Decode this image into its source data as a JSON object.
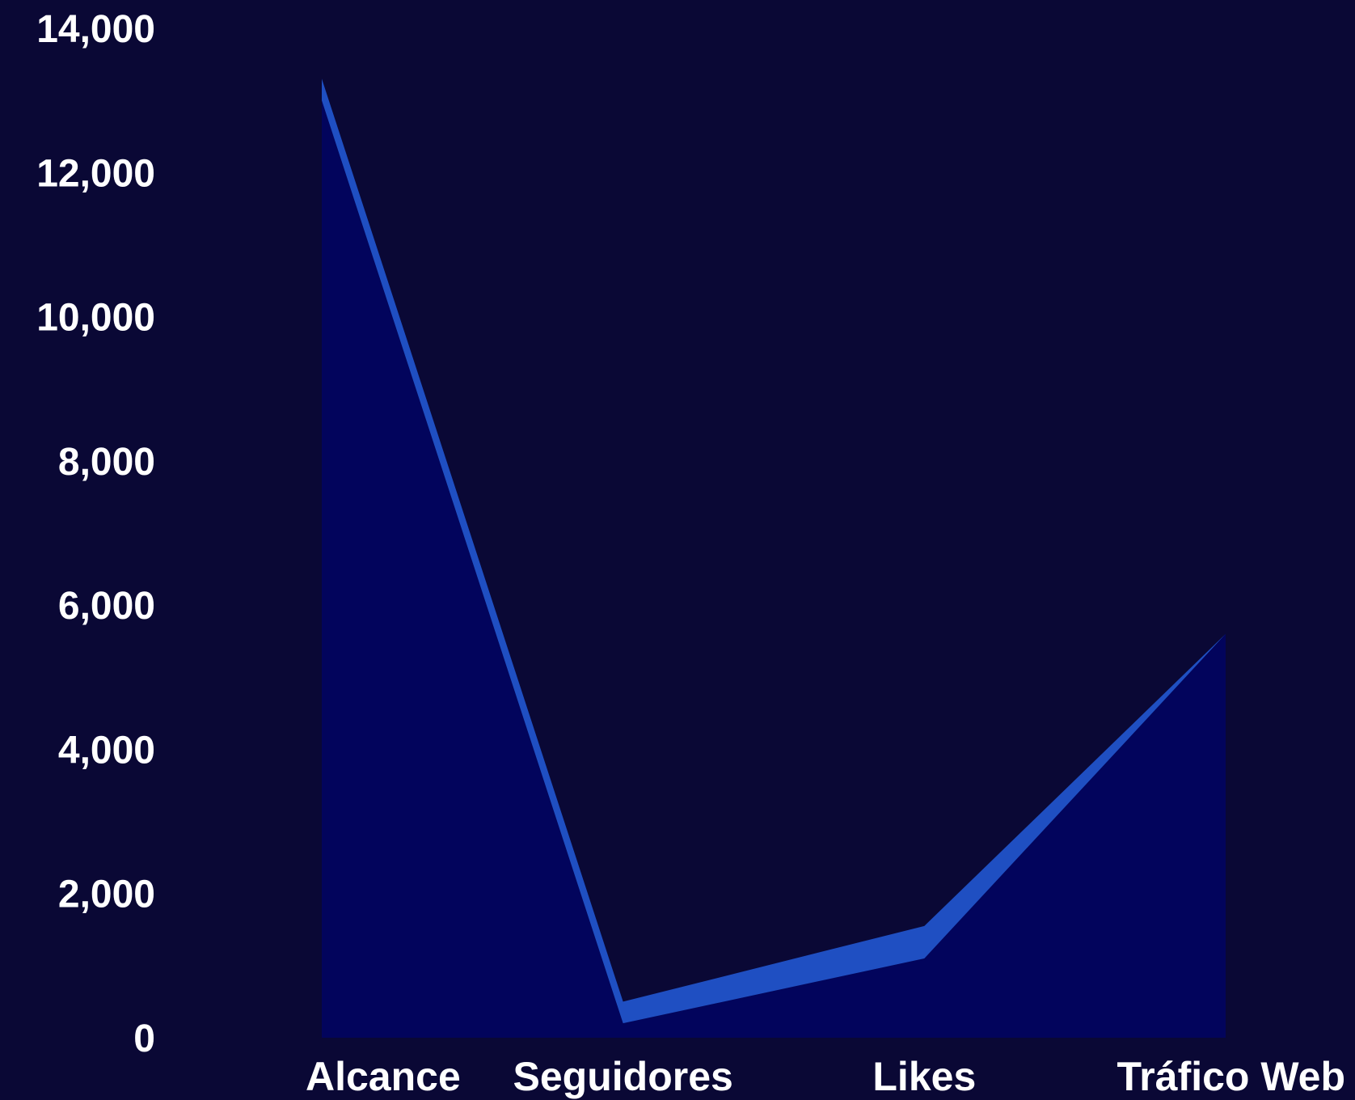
{
  "chart_data": {
    "type": "area",
    "categories": [
      "Alcance",
      "Seguidores",
      "Likes",
      "Tráfico Web"
    ],
    "series": [
      {
        "values": [
          13000,
          200,
          1100,
          5600
        ]
      },
      {
        "values": [
          300,
          300,
          450,
          0
        ]
      }
    ],
    "stacked": true,
    "yticks": [
      "0",
      "2,000",
      "4,000",
      "6,000",
      "8,000",
      "10,000",
      "12,000",
      "14,000"
    ],
    "ylim": [
      0,
      14000
    ],
    "grid": false,
    "colors": {
      "background": "#0a0835",
      "area": "#02045c",
      "band": "#1f4fc2",
      "text": "#ffffff"
    }
  }
}
